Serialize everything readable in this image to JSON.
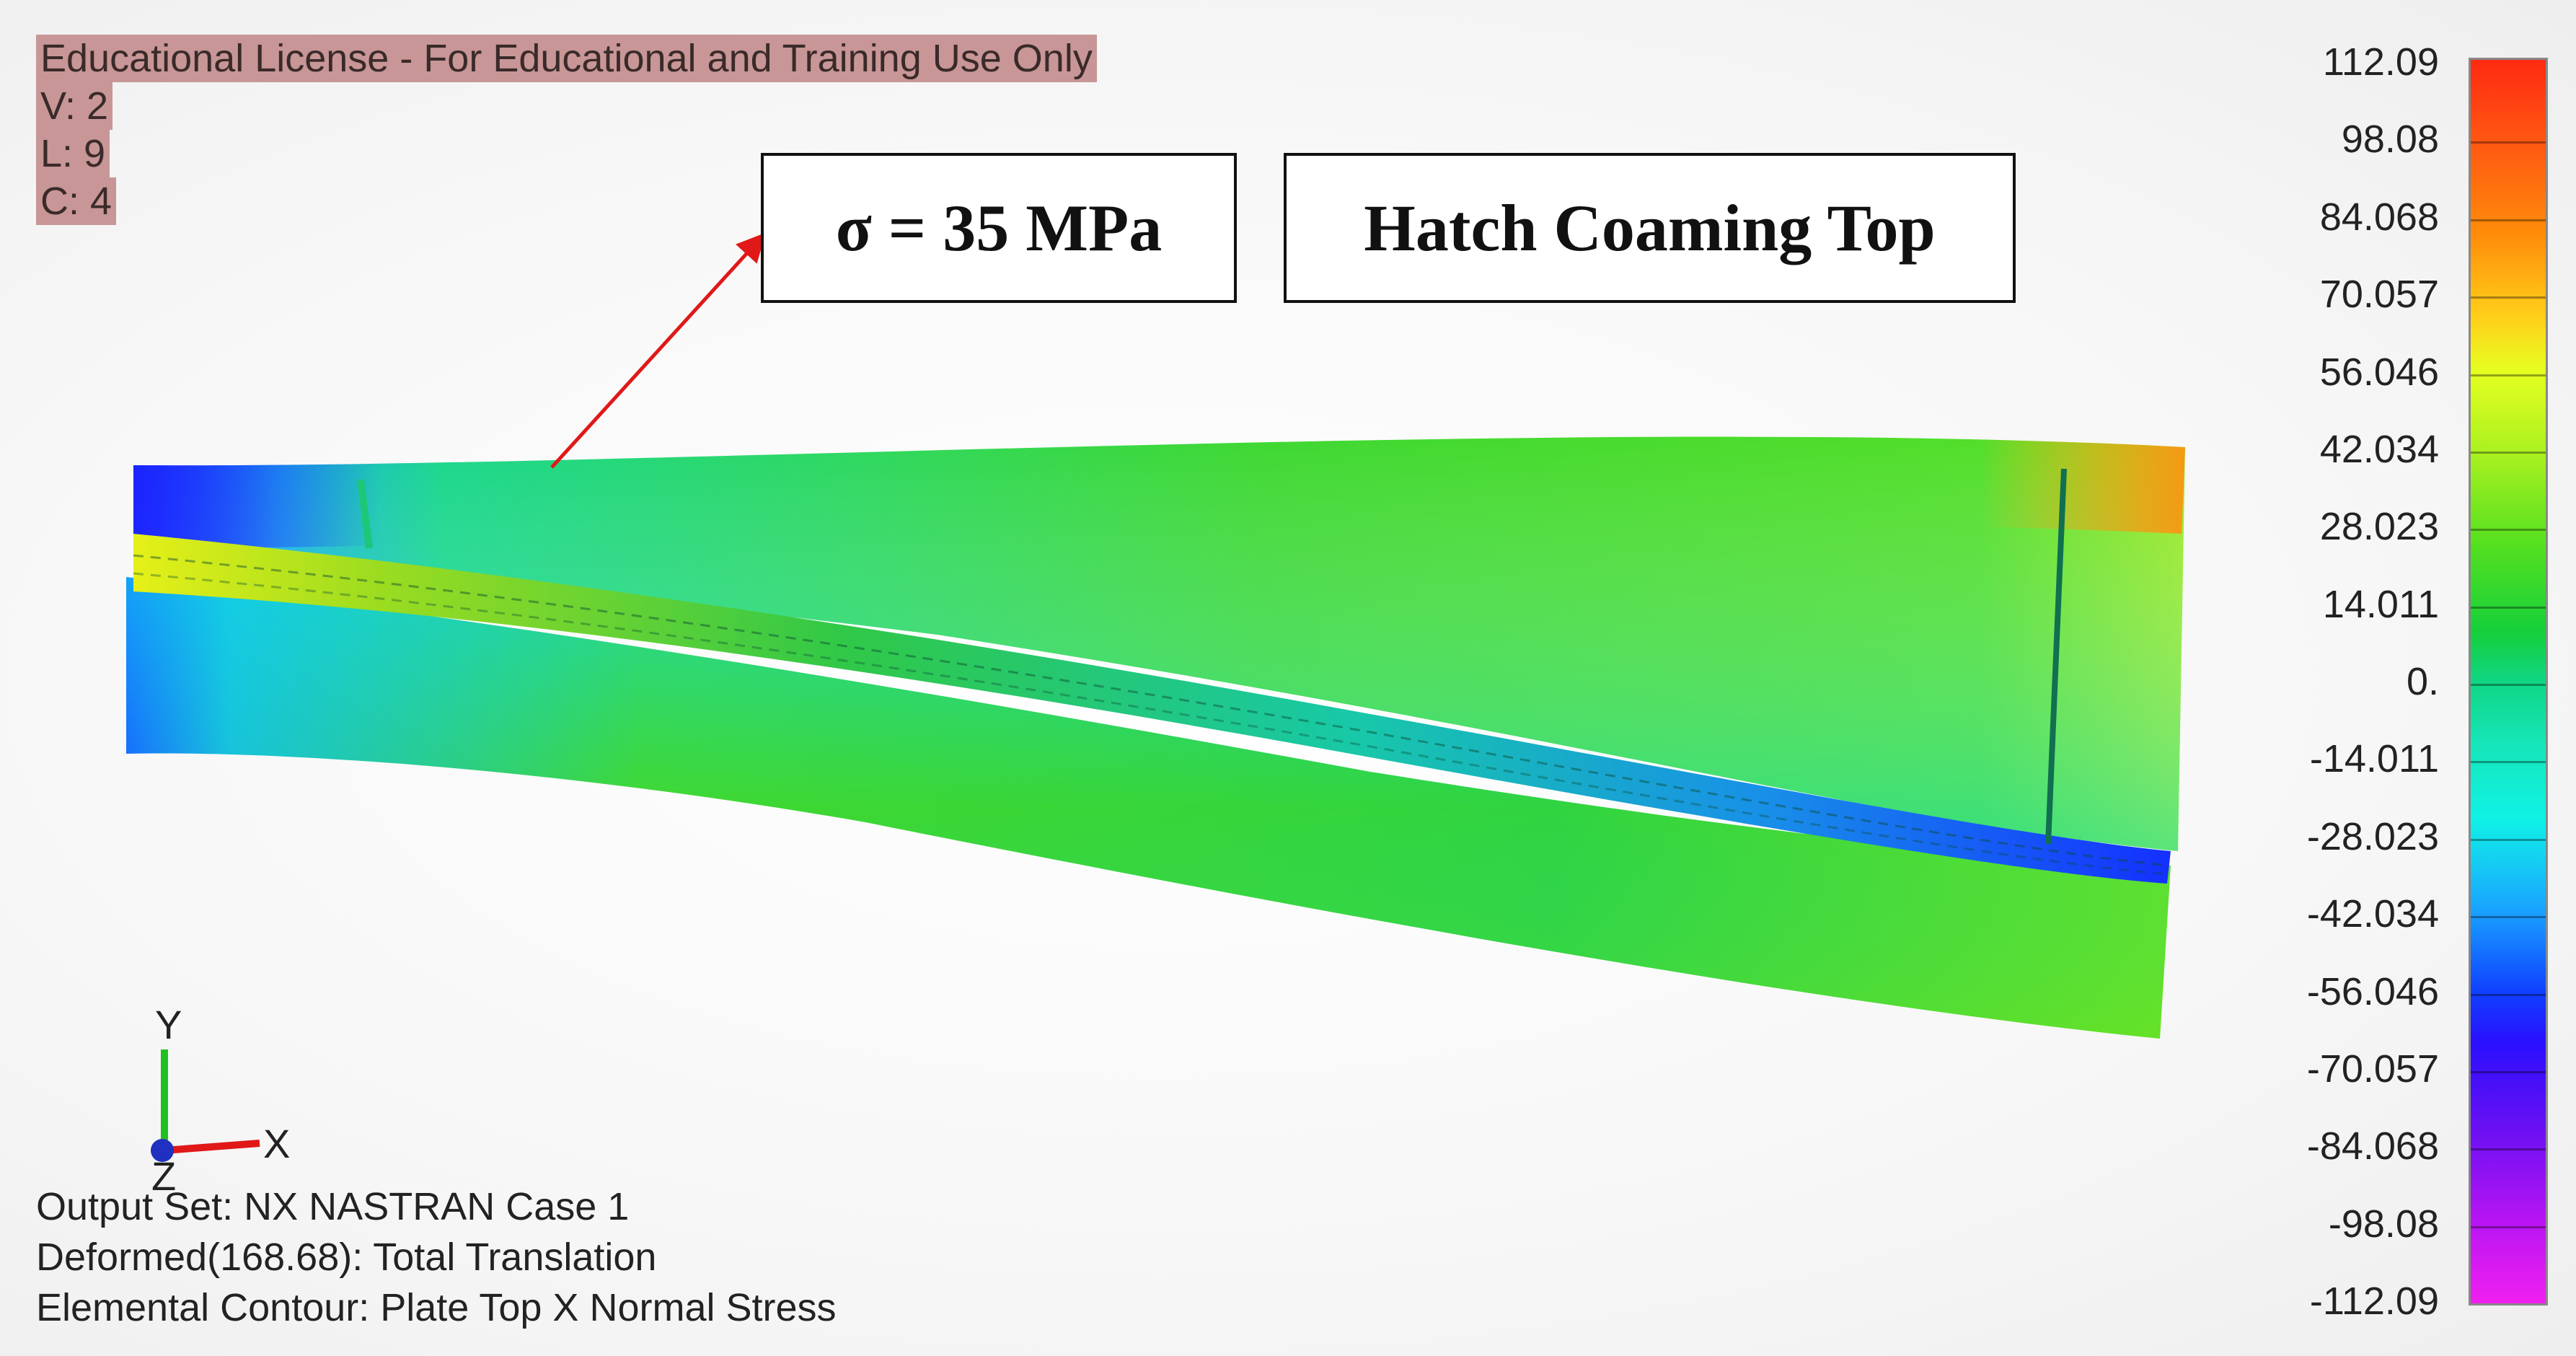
{
  "license": {
    "title": "Educational License - For Educational and Training Use Only",
    "v": "V: 2",
    "l": "L: 9",
    "c": "C: 4"
  },
  "callouts": {
    "stress": "σ = 35 MPa",
    "location": "Hatch Coaming Top"
  },
  "triad": {
    "y": "Y",
    "x": "X",
    "z": "Z"
  },
  "info": {
    "output_set": "Output Set: NX NASTRAN Case 1",
    "deformed": "Deformed(168.68): Total Translation",
    "contour": "Elemental Contour: Plate Top X Normal Stress"
  },
  "legend": {
    "ticks": [
      "112.09",
      "98.08",
      "84.068",
      "70.057",
      "56.046",
      "42.034",
      "28.023",
      "14.011",
      "0.",
      "-14.011",
      "-28.023",
      "-42.034",
      "-56.046",
      "-70.057",
      "-84.068",
      "-98.08",
      "-112.09"
    ],
    "max_color": "#ff2a12",
    "mid_color": "#10d684",
    "min_color": "#f020f0"
  },
  "colors": {
    "arrow": "#e01818",
    "triad_y": "#20c020",
    "triad_x": "#e01818",
    "triad_z": "#2030c0"
  }
}
